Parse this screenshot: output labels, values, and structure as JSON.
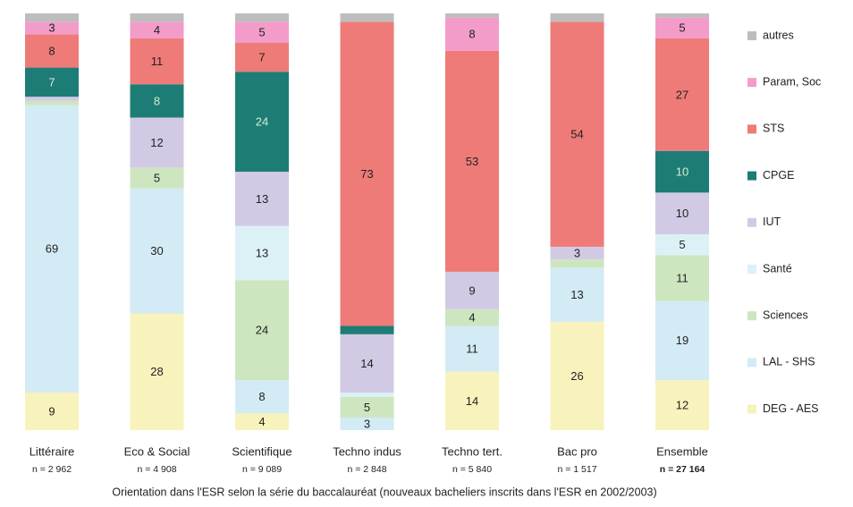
{
  "chart_data": {
    "type": "stacked_bar",
    "title": "Orientation dans l'ESR selon la série du baccalauréat (nouveaux bacheliers inscrits dans l'ESR en 2002/2003)",
    "categories": [
      "Littéraire",
      "Eco & Social",
      "Scientifique",
      "Techno indus",
      "Techno tert.",
      "Bac pro",
      "Ensemble"
    ],
    "n_labels": [
      "n = 2 962",
      "n = 4 908",
      "n = 9 089",
      "n = 2 848",
      "n = 5 840",
      "n = 1 517",
      "n = 27 164"
    ],
    "ylim": [
      0,
      100
    ],
    "series": [
      {
        "name": "DEG - AES",
        "color": "#f8f2bd",
        "values": [
          9,
          28,
          4,
          0,
          14,
          26,
          12
        ],
        "value_labels": [
          "9",
          "28",
          "4",
          null,
          "14",
          "26",
          "12"
        ]
      },
      {
        "name": "LAL - SHS",
        "color": "#d3ebf4",
        "values": [
          69,
          30,
          8,
          3,
          11,
          13,
          19
        ],
        "value_labels": [
          "69",
          "30",
          "8",
          "3",
          "11",
          "13",
          "19"
        ]
      },
      {
        "name": "Sciences",
        "color": "#cde6bf",
        "values": [
          1,
          5,
          24,
          5,
          4,
          2,
          11
        ],
        "value_labels": [
          null,
          "5",
          "24",
          "5",
          "4",
          null,
          "11"
        ]
      },
      {
        "name": "Santé",
        "color": "#dcf1f6",
        "values": [
          0,
          0,
          13,
          1,
          0,
          0,
          5
        ],
        "value_labels": [
          null,
          null,
          "13",
          null,
          null,
          null,
          "5"
        ]
      },
      {
        "name": "IUT",
        "color": "#d2cae5",
        "values": [
          1,
          12,
          13,
          14,
          9,
          3,
          10
        ],
        "value_labels": [
          null,
          "12",
          "13",
          "14",
          "9",
          "3",
          "10"
        ]
      },
      {
        "name": "CPGE",
        "color": "#1d7d76",
        "values": [
          7,
          8,
          24,
          2,
          0,
          0,
          10
        ],
        "value_labels": [
          "7",
          "8",
          "24",
          null,
          null,
          null,
          "10"
        ]
      },
      {
        "name": "STS",
        "color": "#ee7b78",
        "values": [
          8,
          11,
          7,
          73,
          53,
          54,
          27
        ],
        "value_labels": [
          "8",
          "11",
          "7",
          "73",
          "53",
          "54",
          "27"
        ]
      },
      {
        "name": "Param, Soc",
        "color": "#f39cc9",
        "values": [
          3,
          4,
          5,
          0,
          8,
          0,
          5
        ],
        "value_labels": [
          "3",
          "4",
          "5",
          null,
          "8",
          null,
          "5"
        ]
      },
      {
        "name": "autres",
        "color": "#bdbdbd",
        "values": [
          2,
          2,
          2,
          2,
          1,
          2,
          1
        ],
        "value_labels": [
          null,
          null,
          null,
          null,
          null,
          null,
          null
        ]
      }
    ]
  }
}
